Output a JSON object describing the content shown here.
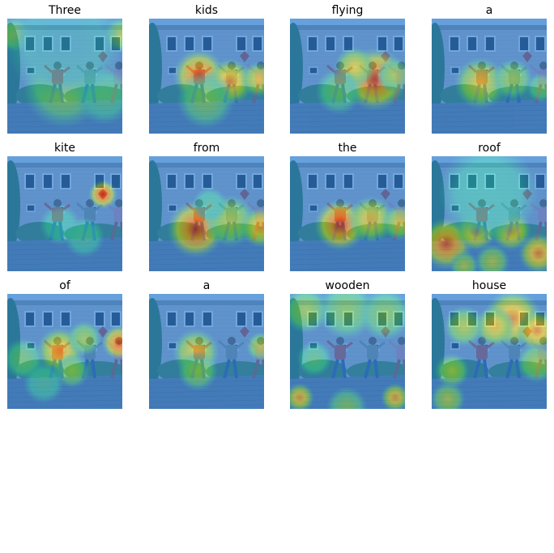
{
  "figure": {
    "words": [
      "Three",
      "kids",
      "flying",
      "a",
      "kite",
      "from",
      "the",
      "roof",
      "of",
      "a",
      "wooden",
      "house"
    ],
    "colors": {
      "sky": "#c8d4e6",
      "siding": "#b9b6bd",
      "window": "#1d2230",
      "trim": "#e6e6ea",
      "foliage": "#2f6b3a",
      "roof_tiles": "#6e7588",
      "kid_red": "#d0453b",
      "kid_jeans": "#334c86",
      "kid_grey": "#8b8f84",
      "kid_pink": "#d98aa0",
      "heat_low": "#2a7fd6",
      "heat_high": "#d11414"
    }
  }
}
